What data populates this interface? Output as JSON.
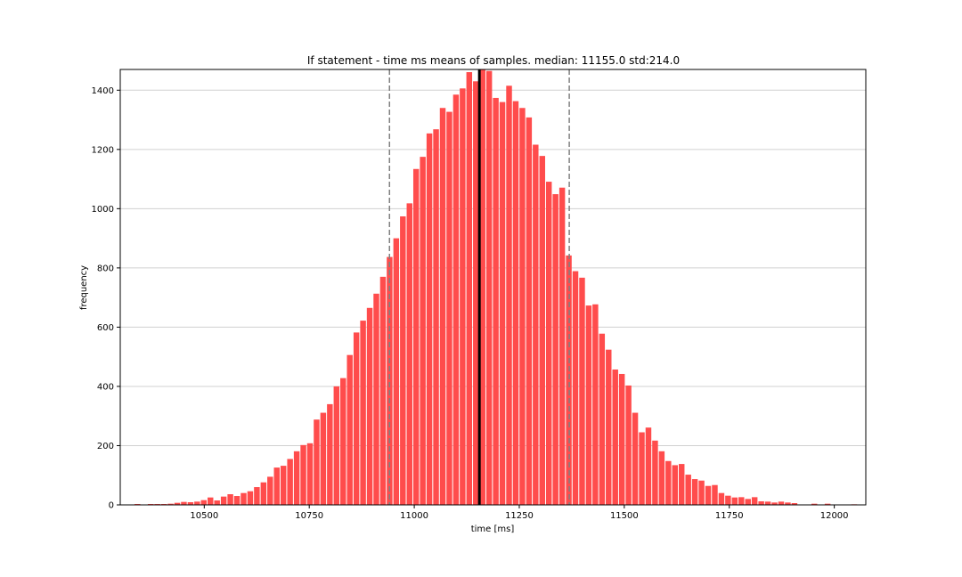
{
  "chart_data": {
    "type": "bar",
    "title": "If statement - time ms means of samples. median: 11155.0 std:214.0",
    "xlabel": "time [ms]",
    "ylabel": "frequency",
    "xlim": [
      10300,
      12075
    ],
    "ylim": [
      0,
      1470
    ],
    "x_ticks": [
      10500,
      10750,
      11000,
      11250,
      11500,
      11750,
      12000
    ],
    "y_ticks": [
      0,
      200,
      400,
      600,
      800,
      1000,
      1200,
      1400
    ],
    "grid": "horizontal",
    "bar_color": "#ff4c4c",
    "bin_start": 10333,
    "bin_width": 15.8,
    "values": [
      3,
      0,
      3,
      3,
      3,
      4,
      7,
      10,
      9,
      11,
      16,
      25,
      15,
      28,
      36,
      30,
      40,
      46,
      60,
      76,
      95,
      126,
      132,
      155,
      181,
      202,
      208,
      288,
      311,
      340,
      400,
      428,
      506,
      582,
      622,
      665,
      713,
      770,
      837,
      900,
      974,
      1018,
      1134,
      1175,
      1254,
      1268,
      1340,
      1327,
      1385,
      1406,
      1461,
      1430,
      1470,
      1465,
      1374,
      1360,
      1415,
      1363,
      1340,
      1308,
      1216,
      1178,
      1091,
      1049,
      1071,
      842,
      789,
      767,
      673,
      677,
      578,
      524,
      457,
      442,
      403,
      311,
      245,
      261,
      217,
      181,
      148,
      134,
      138,
      102,
      87,
      82,
      64,
      67,
      40,
      31,
      25,
      26,
      20,
      26,
      12,
      11,
      8,
      11,
      8,
      6,
      0,
      0,
      4,
      0,
      4,
      0,
      0,
      0,
      2,
      0,
      0
    ],
    "median": 11155.0,
    "std": 214.0,
    "median_line_x": 11155.0,
    "std_lines_x": [
      10941.0,
      11369.0
    ],
    "median_color": "#000000",
    "std_color": "#808080"
  }
}
